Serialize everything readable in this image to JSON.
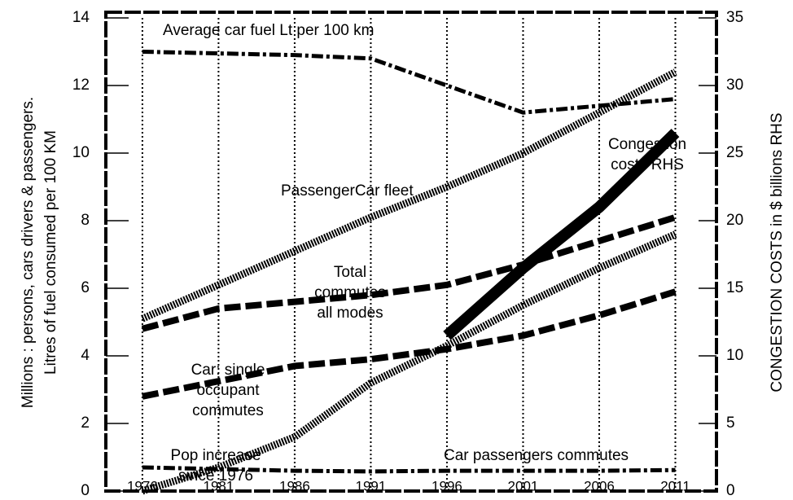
{
  "chart_data": {
    "type": "line",
    "ylabel": [
      "Millions : persons, cars drivers & passengers.",
      "Litres of fuel consumed per 100 KM"
    ],
    "y2label": "CONGESTION COSTS in $ billions RHS",
    "x": [
      1976,
      1981,
      1986,
      1991,
      1996,
      2001,
      2006,
      2011
    ],
    "xlim": [
      1973.6,
      2013.7
    ],
    "xticks": [
      1976,
      1981,
      1986,
      1991,
      1996,
      2001,
      2006,
      2011
    ],
    "ylim": [
      0,
      14
    ],
    "yticks": [
      0,
      2,
      4,
      6,
      8,
      10,
      12,
      14
    ],
    "y2lim": [
      0,
      35
    ],
    "y2ticks": [
      0,
      5,
      10,
      15,
      20,
      25,
      30,
      35
    ],
    "grid": "x",
    "series": [
      {
        "name": [
          "Average car fuel  Lt per 100 km"
        ],
        "color": "#000",
        "style": "dashdot",
        "values": [
          13.0,
          12.95,
          12.9,
          12.8,
          12.0,
          11.2,
          11.4,
          11.6
        ]
      },
      {
        "name": [
          "PassengerCar fleet"
        ],
        "color": "#000",
        "style": "hatched",
        "values": [
          5.1,
          6.1,
          7.1,
          8.1,
          9.0,
          10.0,
          11.2,
          12.4
        ]
      },
      {
        "name": [
          "Total",
          "commutes",
          "all modes"
        ],
        "color": "#000",
        "style": "dashed",
        "values": [
          4.8,
          5.4,
          5.6,
          5.8,
          6.1,
          6.7,
          7.4,
          8.1
        ]
      },
      {
        "name": [
          "Car: single",
          "occupant",
          "commutes"
        ],
        "color": "#000",
        "style": "dashed",
        "values": [
          2.8,
          3.25,
          3.7,
          3.9,
          4.2,
          4.6,
          5.2,
          5.9
        ]
      },
      {
        "name": [
          "Pop increase",
          "since 1976"
        ],
        "color": "#000",
        "style": "hatched",
        "values": [
          0,
          0.7,
          1.6,
          3.2,
          4.3,
          5.5,
          6.6,
          7.6
        ]
      },
      {
        "name": [
          "Car passengers commutes"
        ],
        "color": "#000",
        "style": "dashdot",
        "values": [
          0.7,
          0.65,
          0.6,
          0.58,
          0.6,
          0.6,
          0.6,
          0.62
        ]
      },
      {
        "name": [
          "Congestion",
          "costs RHS"
        ],
        "color": "#000",
        "style": "solid",
        "axis": "y2",
        "values": [
          null,
          null,
          null,
          null,
          11.5,
          16.5,
          21,
          26.5
        ]
      }
    ]
  }
}
